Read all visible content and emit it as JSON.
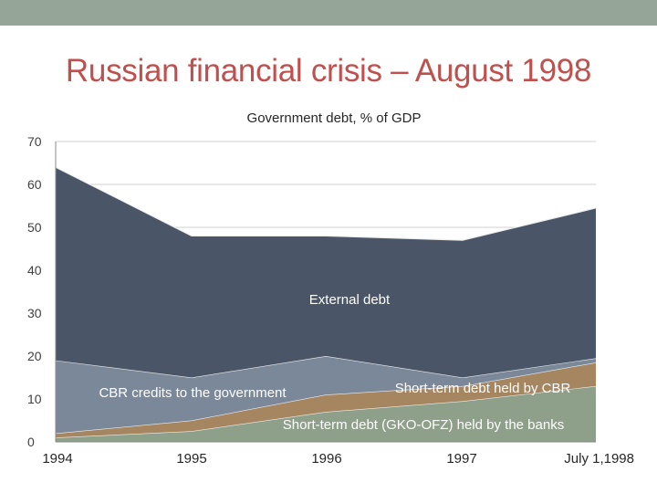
{
  "slide": {
    "title": "Russian financial crisis – August 1998"
  },
  "colors": {
    "top_bar": "#95a597",
    "title": "#c0504d"
  },
  "chart_data": {
    "type": "area",
    "stacked": true,
    "title": "Government debt, % of GDP",
    "xlabel": "",
    "ylabel": "",
    "categories": [
      "1994",
      "1995",
      "1996",
      "1997",
      "July 1,1998"
    ],
    "ylim": [
      0,
      70
    ],
    "yticks": [
      0,
      10,
      20,
      30,
      40,
      50,
      60,
      70
    ],
    "grid": true,
    "series": [
      {
        "name": "Short-term debt (GKO-OFZ) held by the banks",
        "values": [
          1,
          2.5,
          7,
          9.5,
          13
        ],
        "color": "#8e9f8a",
        "label_color": "#ffffff"
      },
      {
        "name": "Short-term debt held by CBR",
        "values": [
          1,
          2.5,
          4,
          3.5,
          5.5
        ],
        "color": "#a68660",
        "label_color": "#ffffff"
      },
      {
        "name": "CBR credits to the government",
        "values": [
          17,
          10,
          9,
          2,
          1
        ],
        "color": "#7b889a",
        "label_color": "#ffffff"
      },
      {
        "name": "External debt",
        "values": [
          45,
          33,
          28,
          32,
          35
        ],
        "color": "#4a5667",
        "label_color": "#ffffff"
      }
    ]
  }
}
